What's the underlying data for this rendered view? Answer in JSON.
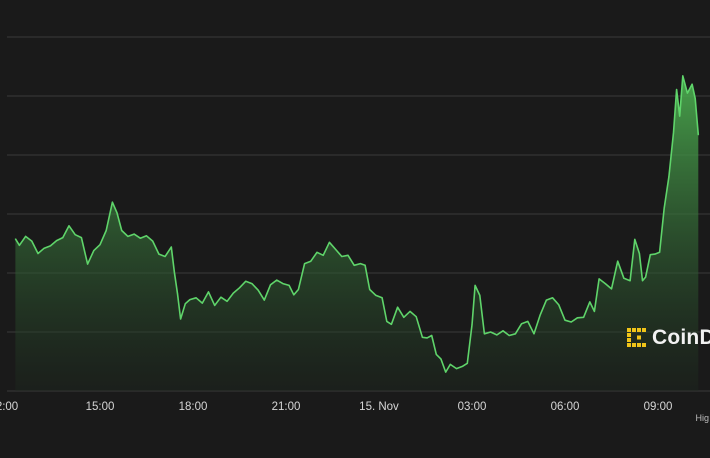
{
  "colors": {
    "background": "#1a1a1a",
    "grid": "#3a3a3a",
    "line": "#5fd46a",
    "fill_top": "#4caf50",
    "fill_bottom": "#1d2a1e",
    "logo_accent": "#f0c419"
  },
  "watermark": {
    "text": "CoinD",
    "icon": "coindesk-logo-icon"
  },
  "corner_note": "Hig",
  "chart_data": {
    "type": "area",
    "title": "",
    "xlabel": "",
    "ylabel": "",
    "grid": true,
    "y_axis_labels_shown": false,
    "x_ticks": [
      {
        "x": 0,
        "label": "2:00"
      },
      {
        "x": 3,
        "label": "15:00"
      },
      {
        "x": 6,
        "label": "18:00"
      },
      {
        "x": 9,
        "label": "21:00"
      },
      {
        "x": 12,
        "label": "15. Nov"
      },
      {
        "x": 15,
        "label": "03:00"
      },
      {
        "x": 18,
        "label": "06:00"
      },
      {
        "x": 21,
        "label": "09:00"
      }
    ],
    "xlim": [
      0,
      22.3
    ],
    "ylim": [
      0,
      6
    ],
    "series": [
      {
        "values": [
          [
            0.27,
            2.58
          ],
          [
            0.4,
            2.47
          ],
          [
            0.6,
            2.62
          ],
          [
            0.8,
            2.54
          ],
          [
            1.0,
            2.33
          ],
          [
            1.2,
            2.42
          ],
          [
            1.4,
            2.46
          ],
          [
            1.6,
            2.55
          ],
          [
            1.8,
            2.6
          ],
          [
            2.0,
            2.8
          ],
          [
            2.2,
            2.65
          ],
          [
            2.4,
            2.6
          ],
          [
            2.6,
            2.15
          ],
          [
            2.8,
            2.38
          ],
          [
            3.0,
            2.48
          ],
          [
            3.2,
            2.72
          ],
          [
            3.4,
            3.2
          ],
          [
            3.55,
            3.02
          ],
          [
            3.7,
            2.72
          ],
          [
            3.9,
            2.62
          ],
          [
            4.1,
            2.66
          ],
          [
            4.3,
            2.59
          ],
          [
            4.5,
            2.63
          ],
          [
            4.7,
            2.54
          ],
          [
            4.9,
            2.32
          ],
          [
            5.1,
            2.28
          ],
          [
            5.3,
            2.44
          ],
          [
            5.4,
            2.01
          ],
          [
            5.5,
            1.65
          ],
          [
            5.6,
            1.22
          ],
          [
            5.75,
            1.48
          ],
          [
            5.9,
            1.55
          ],
          [
            6.1,
            1.58
          ],
          [
            6.3,
            1.49
          ],
          [
            6.5,
            1.68
          ],
          [
            6.7,
            1.45
          ],
          [
            6.9,
            1.59
          ],
          [
            7.1,
            1.52
          ],
          [
            7.3,
            1.66
          ],
          [
            7.5,
            1.75
          ],
          [
            7.7,
            1.86
          ],
          [
            7.9,
            1.82
          ],
          [
            8.1,
            1.71
          ],
          [
            8.3,
            1.54
          ],
          [
            8.5,
            1.8
          ],
          [
            8.7,
            1.88
          ],
          [
            8.9,
            1.82
          ],
          [
            9.1,
            1.79
          ],
          [
            9.25,
            1.63
          ],
          [
            9.4,
            1.72
          ],
          [
            9.6,
            2.16
          ],
          [
            9.8,
            2.2
          ],
          [
            10.0,
            2.35
          ],
          [
            10.2,
            2.3
          ],
          [
            10.4,
            2.52
          ],
          [
            10.6,
            2.4
          ],
          [
            10.8,
            2.28
          ],
          [
            11.0,
            2.3
          ],
          [
            11.2,
            2.13
          ],
          [
            11.4,
            2.16
          ],
          [
            11.55,
            2.13
          ],
          [
            11.7,
            1.72
          ],
          [
            11.9,
            1.62
          ],
          [
            12.1,
            1.58
          ],
          [
            12.25,
            1.18
          ],
          [
            12.4,
            1.13
          ],
          [
            12.6,
            1.42
          ],
          [
            12.8,
            1.25
          ],
          [
            13.0,
            1.35
          ],
          [
            13.2,
            1.26
          ],
          [
            13.4,
            0.91
          ],
          [
            13.55,
            0.9
          ],
          [
            13.7,
            0.94
          ],
          [
            13.85,
            0.62
          ],
          [
            14.0,
            0.54
          ],
          [
            14.15,
            0.32
          ],
          [
            14.3,
            0.45
          ],
          [
            14.5,
            0.38
          ],
          [
            14.7,
            0.42
          ],
          [
            14.85,
            0.47
          ],
          [
            15.0,
            1.12
          ],
          [
            15.1,
            1.79
          ],
          [
            15.25,
            1.62
          ],
          [
            15.4,
            0.97
          ],
          [
            15.6,
            1.0
          ],
          [
            15.8,
            0.95
          ],
          [
            16.0,
            1.02
          ],
          [
            16.2,
            0.94
          ],
          [
            16.4,
            0.97
          ],
          [
            16.6,
            1.14
          ],
          [
            16.8,
            1.18
          ],
          [
            17.0,
            0.97
          ],
          [
            17.2,
            1.29
          ],
          [
            17.4,
            1.54
          ],
          [
            17.6,
            1.58
          ],
          [
            17.8,
            1.46
          ],
          [
            18.0,
            1.2
          ],
          [
            18.2,
            1.17
          ],
          [
            18.4,
            1.24
          ],
          [
            18.6,
            1.25
          ],
          [
            18.8,
            1.51
          ],
          [
            18.95,
            1.35
          ],
          [
            19.1,
            1.9
          ],
          [
            19.3,
            1.82
          ],
          [
            19.5,
            1.73
          ],
          [
            19.7,
            2.2
          ],
          [
            19.9,
            1.91
          ],
          [
            20.1,
            1.87
          ],
          [
            20.25,
            2.57
          ],
          [
            20.4,
            2.33
          ],
          [
            20.5,
            1.87
          ],
          [
            20.6,
            1.93
          ],
          [
            20.75,
            2.31
          ],
          [
            20.9,
            2.32
          ],
          [
            21.05,
            2.35
          ],
          [
            21.2,
            3.1
          ],
          [
            21.35,
            3.63
          ],
          [
            21.5,
            4.38
          ],
          [
            21.6,
            5.11
          ],
          [
            21.7,
            4.66
          ],
          [
            21.8,
            5.34
          ],
          [
            21.95,
            5.05
          ],
          [
            22.1,
            5.2
          ],
          [
            22.2,
            4.96
          ],
          [
            22.3,
            4.34
          ]
        ]
      }
    ]
  }
}
